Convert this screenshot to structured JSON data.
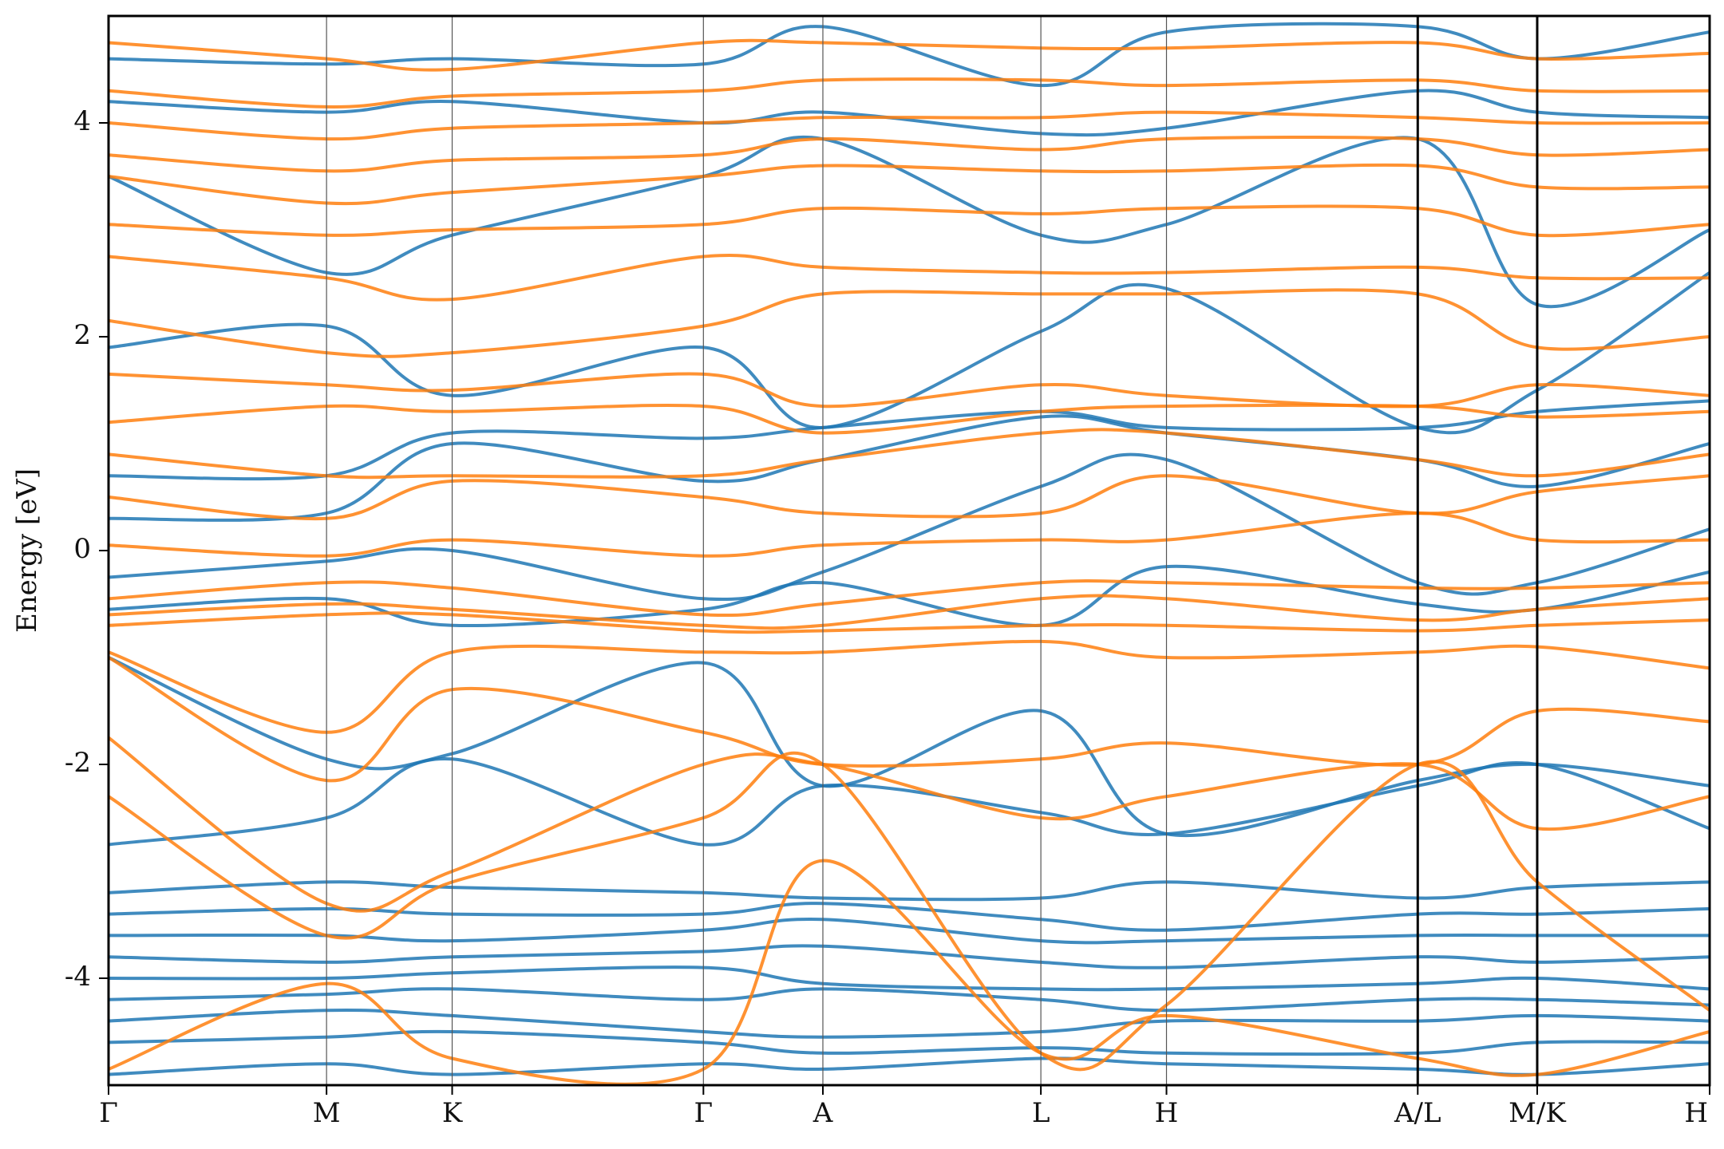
{
  "chart_data": {
    "type": "line",
    "title": "",
    "xlabel": "",
    "ylabel": "Energy [eV]",
    "ylim": [
      -5,
      5
    ],
    "yticks": [
      -4,
      -2,
      0,
      2,
      4
    ],
    "x_domain": [
      0,
      13.0
    ],
    "grid": false,
    "legend": "none",
    "kpoint_labels": [
      "Γ",
      "M",
      "K",
      "Γ",
      "A",
      "L",
      "H",
      "A/L",
      "M/K",
      "H"
    ],
    "kpoint_positions": [
      0,
      1.77,
      2.79,
      4.83,
      5.8,
      7.57,
      8.59,
      10.63,
      11.6,
      13.0
    ],
    "path_breaks": [
      10.63,
      11.6
    ],
    "band_colors": [
      "#1f77b4",
      "#ff7f0e"
    ],
    "series": [
      {
        "color": "#1f77b4",
        "values_at_kpoints": [
          -4.9,
          -4.8,
          -4.9,
          -4.8,
          -4.85,
          -4.75,
          -4.8,
          -4.85,
          -4.9,
          -4.8
        ]
      },
      {
        "color": "#1f77b4",
        "values_at_kpoints": [
          -4.6,
          -4.55,
          -4.5,
          -4.6,
          -4.7,
          -4.65,
          -4.7,
          -4.7,
          -4.6,
          -4.6
        ]
      },
      {
        "color": "#1f77b4",
        "values_at_kpoints": [
          -4.4,
          -4.3,
          -4.35,
          -4.5,
          -4.55,
          -4.5,
          -4.4,
          -4.4,
          -4.35,
          -4.4
        ]
      },
      {
        "color": "#1f77b4",
        "values_at_kpoints": [
          -4.2,
          -4.15,
          -4.1,
          -4.2,
          -4.1,
          -4.2,
          -4.3,
          -4.2,
          -4.2,
          -4.25
        ]
      },
      {
        "color": "#1f77b4",
        "values_at_kpoints": [
          -4.0,
          -4.0,
          -3.95,
          -3.9,
          -4.05,
          -4.1,
          -4.1,
          -4.05,
          -4.0,
          -4.1
        ]
      },
      {
        "color": "#1f77b4",
        "values_at_kpoints": [
          -3.8,
          -3.85,
          -3.8,
          -3.75,
          -3.7,
          -3.85,
          -3.9,
          -3.8,
          -3.85,
          -3.8
        ]
      },
      {
        "color": "#1f77b4",
        "values_at_kpoints": [
          -3.6,
          -3.6,
          -3.65,
          -3.55,
          -3.45,
          -3.65,
          -3.65,
          -3.6,
          -3.6,
          -3.6
        ]
      },
      {
        "color": "#1f77b4",
        "values_at_kpoints": [
          -3.4,
          -3.35,
          -3.4,
          -3.4,
          -3.3,
          -3.45,
          -3.55,
          -3.4,
          -3.4,
          -3.35
        ]
      },
      {
        "color": "#1f77b4",
        "values_at_kpoints": [
          -3.2,
          -3.1,
          -3.15,
          -3.2,
          -3.25,
          -3.25,
          -3.1,
          -3.25,
          -3.15,
          -3.1
        ]
      },
      {
        "color": "#1f77b4",
        "values_at_kpoints": [
          -2.75,
          -2.5,
          -1.95,
          -2.75,
          -2.2,
          -2.45,
          -2.65,
          -2.2,
          -2.0,
          -2.6
        ]
      },
      {
        "color": "#1f77b4",
        "values_at_kpoints": [
          -1.0,
          -1.95,
          -1.9,
          -1.05,
          -2.2,
          -1.5,
          -2.65,
          -2.15,
          -2.0,
          -2.2
        ]
      },
      {
        "color": "#1f77b4",
        "values_at_kpoints": [
          -0.55,
          -0.45,
          -0.7,
          -0.55,
          -0.3,
          -0.7,
          -0.15,
          -0.5,
          -0.55,
          -0.2
        ]
      },
      {
        "color": "#1f77b4",
        "values_at_kpoints": [
          -0.25,
          -0.1,
          0.0,
          -0.45,
          -0.2,
          0.6,
          0.85,
          -0.3,
          -0.3,
          0.2
        ]
      },
      {
        "color": "#1f77b4",
        "values_at_kpoints": [
          0.3,
          0.35,
          1.0,
          0.65,
          0.85,
          1.25,
          1.1,
          0.85,
          0.6,
          1.0
        ]
      },
      {
        "color": "#1f77b4",
        "values_at_kpoints": [
          0.7,
          0.7,
          1.1,
          1.05,
          1.15,
          1.3,
          1.15,
          1.15,
          1.3,
          1.4
        ]
      },
      {
        "color": "#1f77b4",
        "values_at_kpoints": [
          1.9,
          2.1,
          1.45,
          1.9,
          1.15,
          2.05,
          2.45,
          1.15,
          1.5,
          2.6
        ]
      },
      {
        "color": "#1f77b4",
        "values_at_kpoints": [
          3.5,
          2.6,
          2.95,
          3.5,
          3.85,
          2.95,
          3.05,
          3.85,
          2.3,
          3.0
        ]
      },
      {
        "color": "#1f77b4",
        "values_at_kpoints": [
          4.2,
          4.1,
          4.2,
          4.0,
          4.1,
          3.9,
          3.95,
          4.3,
          4.1,
          4.05
        ]
      },
      {
        "color": "#1f77b4",
        "values_at_kpoints": [
          4.6,
          4.55,
          4.6,
          4.55,
          4.9,
          4.35,
          4.85,
          4.9,
          4.6,
          4.85
        ]
      },
      {
        "color": "#ff7f0e",
        "values_at_kpoints": [
          -4.85,
          -4.05,
          -4.75,
          -4.85,
          -2.9,
          -4.7,
          -4.35,
          -4.75,
          -4.9,
          -4.5
        ]
      },
      {
        "color": "#ff7f0e",
        "values_at_kpoints": [
          -2.3,
          -3.6,
          -3.1,
          -2.5,
          -2.0,
          -4.7,
          -4.25,
          -2.0,
          -3.1,
          -4.3
        ]
      },
      {
        "color": "#ff7f0e",
        "values_at_kpoints": [
          -1.75,
          -3.3,
          -3.0,
          -2.0,
          -2.0,
          -2.5,
          -2.3,
          -2.0,
          -2.6,
          -2.3
        ]
      },
      {
        "color": "#ff7f0e",
        "values_at_kpoints": [
          -1.0,
          -2.15,
          -1.3,
          -1.7,
          -2.0,
          -1.95,
          -1.8,
          -2.0,
          -1.5,
          -1.6
        ]
      },
      {
        "color": "#ff7f0e",
        "values_at_kpoints": [
          -0.95,
          -1.7,
          -0.95,
          -0.95,
          -0.95,
          -0.85,
          -1.0,
          -0.95,
          -0.9,
          -1.1
        ]
      },
      {
        "color": "#ff7f0e",
        "values_at_kpoints": [
          -0.7,
          -0.6,
          -0.6,
          -0.75,
          -0.75,
          -0.7,
          -0.7,
          -0.75,
          -0.7,
          -0.65
        ]
      },
      {
        "color": "#ff7f0e",
        "values_at_kpoints": [
          -0.6,
          -0.5,
          -0.55,
          -0.7,
          -0.7,
          -0.45,
          -0.45,
          -0.65,
          -0.55,
          -0.45
        ]
      },
      {
        "color": "#ff7f0e",
        "values_at_kpoints": [
          -0.45,
          -0.3,
          -0.35,
          -0.6,
          -0.5,
          -0.3,
          -0.3,
          -0.35,
          -0.35,
          -0.3
        ]
      },
      {
        "color": "#ff7f0e",
        "values_at_kpoints": [
          0.05,
          -0.05,
          0.1,
          -0.05,
          0.05,
          0.1,
          0.1,
          0.35,
          0.1,
          0.1
        ]
      },
      {
        "color": "#ff7f0e",
        "values_at_kpoints": [
          0.5,
          0.3,
          0.65,
          0.5,
          0.35,
          0.35,
          0.7,
          0.35,
          0.55,
          0.7
        ]
      },
      {
        "color": "#ff7f0e",
        "values_at_kpoints": [
          0.9,
          0.7,
          0.7,
          0.7,
          0.85,
          1.1,
          1.1,
          0.85,
          0.7,
          0.9
        ]
      },
      {
        "color": "#ff7f0e",
        "values_at_kpoints": [
          1.2,
          1.35,
          1.3,
          1.35,
          1.1,
          1.3,
          1.35,
          1.35,
          1.25,
          1.3
        ]
      },
      {
        "color": "#ff7f0e",
        "values_at_kpoints": [
          1.65,
          1.55,
          1.5,
          1.65,
          1.35,
          1.55,
          1.45,
          1.35,
          1.55,
          1.45
        ]
      },
      {
        "color": "#ff7f0e",
        "values_at_kpoints": [
          2.15,
          1.85,
          1.85,
          2.1,
          2.4,
          2.4,
          2.4,
          2.4,
          1.9,
          2.0
        ]
      },
      {
        "color": "#ff7f0e",
        "values_at_kpoints": [
          2.75,
          2.55,
          2.35,
          2.75,
          2.65,
          2.6,
          2.6,
          2.65,
          2.55,
          2.55
        ]
      },
      {
        "color": "#ff7f0e",
        "values_at_kpoints": [
          3.05,
          2.95,
          3.0,
          3.05,
          3.2,
          3.15,
          3.2,
          3.2,
          2.95,
          3.05
        ]
      },
      {
        "color": "#ff7f0e",
        "values_at_kpoints": [
          3.5,
          3.25,
          3.35,
          3.5,
          3.6,
          3.55,
          3.55,
          3.6,
          3.4,
          3.4
        ]
      },
      {
        "color": "#ff7f0e",
        "values_at_kpoints": [
          3.7,
          3.55,
          3.65,
          3.7,
          3.85,
          3.75,
          3.85,
          3.85,
          3.7,
          3.75
        ]
      },
      {
        "color": "#ff7f0e",
        "values_at_kpoints": [
          4.0,
          3.85,
          3.95,
          4.0,
          4.05,
          4.05,
          4.1,
          4.05,
          4.0,
          4.0
        ]
      },
      {
        "color": "#ff7f0e",
        "values_at_kpoints": [
          4.3,
          4.15,
          4.25,
          4.3,
          4.4,
          4.4,
          4.35,
          4.4,
          4.3,
          4.3
        ]
      },
      {
        "color": "#ff7f0e",
        "values_at_kpoints": [
          4.75,
          4.6,
          4.5,
          4.75,
          4.75,
          4.7,
          4.7,
          4.75,
          4.6,
          4.65
        ]
      }
    ]
  }
}
